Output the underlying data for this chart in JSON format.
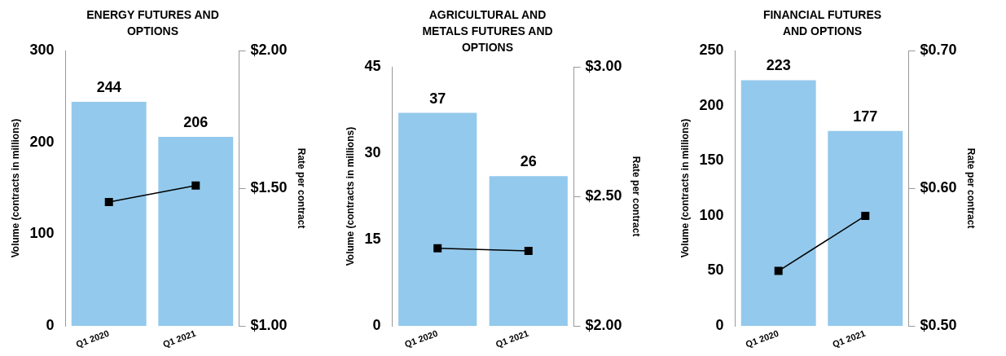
{
  "chart_data": [
    {
      "type": "bar",
      "title": "ENERGY FUTURES AND OPTIONS",
      "categories": [
        "Q1 2020",
        "Q1 2021"
      ],
      "ylabel": "Volume (contracts in millions)",
      "y2label": "Rate per contract",
      "ylim": [
        0,
        300
      ],
      "yticks": [
        0,
        100,
        200,
        300
      ],
      "y2lim": [
        1.0,
        2.0
      ],
      "y2ticks": [
        {
          "value": 1.0,
          "label": "$1.00"
        },
        {
          "value": 1.5,
          "label": "$1.50"
        },
        {
          "value": 2.0,
          "label": "$2.00"
        }
      ],
      "marker": "square",
      "legend": false,
      "series": [
        {
          "color": "#93c9ec",
          "values": [
            244,
            206
          ],
          "value_labels": [
            "244",
            "206"
          ]
        },
        {
          "type": "line",
          "axis": "y2",
          "color": "#000000",
          "values": [
            1.45,
            1.51
          ]
        }
      ]
    },
    {
      "type": "bar",
      "title": "AGRICULTURAL AND METALS FUTURES AND OPTIONS",
      "categories": [
        "Q1 2020",
        "Q1 2021"
      ],
      "ylabel": "Volume (contracts in millions)",
      "y2label": "Rate per contract",
      "ylim": [
        0,
        45
      ],
      "yticks": [
        0,
        15,
        30,
        45
      ],
      "y2lim": [
        2.0,
        3.0
      ],
      "y2ticks": [
        {
          "value": 2.0,
          "label": "$2.00"
        },
        {
          "value": 2.5,
          "label": "$2.50"
        },
        {
          "value": 3.0,
          "label": "$3.00"
        }
      ],
      "marker": "square",
      "legend": false,
      "series": [
        {
          "color": "#93c9ec",
          "values": [
            37,
            26
          ],
          "value_labels": [
            "37",
            "26"
          ]
        },
        {
          "type": "line",
          "axis": "y2",
          "color": "#000000",
          "values": [
            2.3,
            2.29
          ]
        }
      ]
    },
    {
      "type": "bar",
      "title": "FINANCIAL FUTURES AND OPTIONS",
      "categories": [
        "Q1 2020",
        "Q1 2021"
      ],
      "ylabel": "Volume (contracts in millions)",
      "y2label": "Rate per contract",
      "ylim": [
        0,
        250
      ],
      "yticks": [
        0,
        50,
        100,
        150,
        200,
        250
      ],
      "y2lim": [
        0.5,
        0.7
      ],
      "y2ticks": [
        {
          "value": 0.5,
          "label": "$0.50"
        },
        {
          "value": 0.6,
          "label": "$0.60"
        },
        {
          "value": 0.7,
          "label": "$0.70"
        }
      ],
      "marker": "square",
      "legend": false,
      "series": [
        {
          "color": "#93c9ec",
          "values": [
            223,
            177
          ],
          "value_labels": [
            "223",
            "177"
          ]
        },
        {
          "type": "line",
          "axis": "y2",
          "color": "#000000",
          "values": [
            0.54,
            0.58
          ]
        }
      ]
    }
  ]
}
